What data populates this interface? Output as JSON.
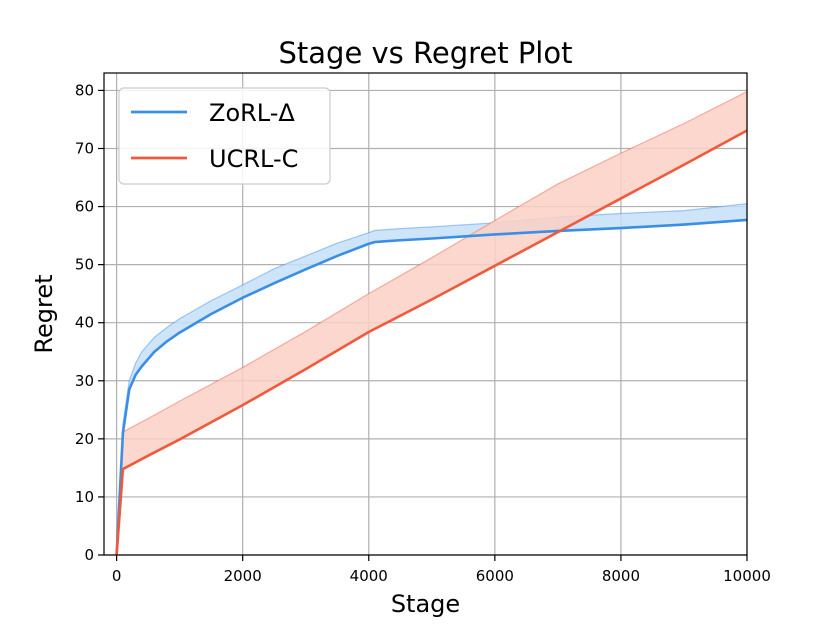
{
  "chart_data": {
    "type": "line",
    "title": "Stage vs Regret Plot",
    "xlabel": "Stage",
    "ylabel": "Regret",
    "xlim": [
      -200,
      10000
    ],
    "ylim": [
      0,
      83
    ],
    "xticks": [
      0,
      2000,
      4000,
      6000,
      8000,
      10000
    ],
    "xtick_labels": [
      "0",
      "2000",
      "4000",
      "6000",
      "8000",
      "10000"
    ],
    "yticks": [
      0,
      10,
      20,
      30,
      40,
      50,
      60,
      70,
      80
    ],
    "ytick_labels": [
      "0",
      "10",
      "20",
      "30",
      "40",
      "50",
      "60",
      "70",
      "80"
    ],
    "grid": true,
    "legend": "top-left",
    "series": [
      {
        "name": "ZoRL-Δ",
        "color": "#3a8ee6",
        "fill": "#c5dff7",
        "x": [
          0,
          100,
          200,
          300,
          400,
          600,
          800,
          1000,
          1500,
          2000,
          2500,
          3000,
          3500,
          4000,
          4100,
          4500,
          5000,
          6000,
          7000,
          8000,
          9000,
          10000
        ],
        "y": [
          0,
          21,
          28.5,
          31,
          32.5,
          35,
          36.8,
          38.3,
          41.5,
          44.3,
          46.8,
          49.2,
          51.5,
          53.6,
          53.9,
          54.2,
          54.5,
          55.2,
          55.8,
          56.3,
          56.9,
          57.7
        ],
        "upper": [
          0,
          22.5,
          30,
          33,
          35,
          37.5,
          39.2,
          40.7,
          43.8,
          46.5,
          49.3,
          51.5,
          53.7,
          55.5,
          55.9,
          56.2,
          56.5,
          57.2,
          58.2,
          58.8,
          59.3,
          60.5
        ]
      },
      {
        "name": "UCRL-C",
        "color": "#f05a3c",
        "fill": "#fbd0c5",
        "x": [
          0,
          100,
          500,
          1000,
          2000,
          3000,
          4000,
          5000,
          6000,
          7000,
          8000,
          9000,
          10000
        ],
        "y": [
          0,
          14.8,
          17.1,
          19.9,
          25.8,
          32.0,
          38.4,
          44.0,
          49.8,
          55.6,
          61.4,
          67.2,
          73.1
        ],
        "upper": [
          0,
          21.2,
          23.5,
          26.5,
          32.3,
          38.5,
          45.0,
          51.2,
          57.6,
          63.9,
          69.2,
          74.3,
          79.8
        ]
      }
    ]
  }
}
